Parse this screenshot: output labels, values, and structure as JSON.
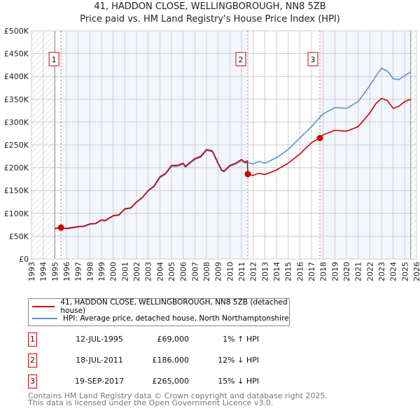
{
  "title": "41, HADDON CLOSE, WELLINGBOROUGH, NN8 5ZB",
  "subtitle": "Price paid vs. HM Land Registry's House Price Index (HPI)",
  "chart_data": {
    "type": "line",
    "xlim": [
      1993,
      2026
    ],
    "ylim": [
      0,
      500000
    ],
    "x_ticks": [
      "1993",
      "1994",
      "1995",
      "1996",
      "1997",
      "1998",
      "1999",
      "2000",
      "2001",
      "2002",
      "2003",
      "2004",
      "2005",
      "2006",
      "2007",
      "2008",
      "2009",
      "2010",
      "2011",
      "2012",
      "2013",
      "2014",
      "2015",
      "2016",
      "2017",
      "2018",
      "2019",
      "2020",
      "2021",
      "2022",
      "2023",
      "2024",
      "2025",
      "2026"
    ],
    "y_ticks": [
      {
        "v": 0,
        "label": "£0"
      },
      {
        "v": 50000,
        "label": "£50K"
      },
      {
        "v": 100000,
        "label": "£100K"
      },
      {
        "v": 150000,
        "label": "£150K"
      },
      {
        "v": 200000,
        "label": "£200K"
      },
      {
        "v": 250000,
        "label": "£250K"
      },
      {
        "v": 300000,
        "label": "£300K"
      },
      {
        "v": 350000,
        "label": "£350K"
      },
      {
        "v": 400000,
        "label": "£400K"
      },
      {
        "v": 450000,
        "label": "£450K"
      },
      {
        "v": 500000,
        "label": "£500K"
      }
    ],
    "grid": true,
    "hatched_before": 1995.0,
    "hatched_after": 2025.5,
    "series": [
      {
        "name": "41, HADDON CLOSE, WELLINGBOROUGH, NN8 5ZB (detached house)",
        "color": "#cc0000",
        "x": [
          1995.0,
          1995.5,
          1996,
          1997,
          1997.5,
          1998,
          1998.5,
          1999,
          1999.3,
          2000,
          2000.5,
          2001,
          2001.5,
          2002,
          2002.5,
          2003,
          2003.5,
          2004,
          2004.5,
          2005,
          2005.5,
          2006,
          2006.2,
          2006.5,
          2007,
          2007.5,
          2008,
          2008.5,
          2009,
          2009.3,
          2009.5,
          2010,
          2010.5,
          2011,
          2011.3,
          2011.5,
          2011.55,
          2012,
          2012.5,
          2013,
          2014,
          2015,
          2016,
          2017,
          2017.7,
          2018,
          2019,
          2020,
          2021,
          2022,
          2022.5,
          2023,
          2023.5,
          2024,
          2024.5,
          2025,
          2025.5
        ],
        "y": [
          67000,
          69000,
          67000,
          71000,
          72000,
          77000,
          78000,
          86000,
          84000,
          95000,
          97000,
          110000,
          112000,
          125000,
          135000,
          150000,
          160000,
          180000,
          188000,
          205000,
          205000,
          210000,
          203000,
          210000,
          220000,
          225000,
          240000,
          237000,
          210000,
          195000,
          193000,
          205000,
          210000,
          218000,
          212000,
          215000,
          186000,
          183000,
          188000,
          185000,
          195000,
          210000,
          230000,
          255000,
          265000,
          272000,
          282000,
          280000,
          290000,
          320000,
          340000,
          352000,
          347000,
          330000,
          335000,
          345000,
          350000
        ]
      },
      {
        "name": "HPI: Average price, detached house, North Northamptonshire",
        "color": "#5b8fd4",
        "x": [
          1995.0,
          1995.5,
          1996,
          1997,
          1997.5,
          1998,
          1998.5,
          1999,
          1999.3,
          2000,
          2000.5,
          2001,
          2001.5,
          2002,
          2002.5,
          2003,
          2003.5,
          2004,
          2004.5,
          2005,
          2005.5,
          2006,
          2006.2,
          2006.5,
          2007,
          2007.5,
          2008,
          2008.5,
          2009,
          2009.3,
          2009.5,
          2010,
          2010.5,
          2011,
          2011.3,
          2011.5,
          2012,
          2012.5,
          2013,
          2014,
          2015,
          2016,
          2017,
          2017.7,
          2018,
          2019,
          2020,
          2021,
          2022,
          2022.5,
          2023,
          2023.5,
          2024,
          2024.5,
          2025,
          2025.5
        ],
        "y": [
          66000,
          68000,
          66000,
          70000,
          71000,
          76000,
          77000,
          85000,
          83000,
          94000,
          96000,
          109000,
          111000,
          124000,
          134000,
          149000,
          158000,
          178000,
          186000,
          203000,
          203000,
          208000,
          201000,
          208000,
          218000,
          223000,
          238000,
          235000,
          208000,
          193000,
          191000,
          203000,
          208000,
          216000,
          210000,
          212000,
          208000,
          214000,
          210000,
          222000,
          240000,
          265000,
          290000,
          310000,
          318000,
          332000,
          330000,
          345000,
          380000,
          400000,
          418000,
          412000,
          395000,
          393000,
          402000,
          410000
        ]
      }
    ],
    "sales": [
      {
        "id": "1",
        "x": 1995.53,
        "y": 69000,
        "date": "12-JUL-1995",
        "price": "£69,000",
        "hpi": "1% ↑ HPI"
      },
      {
        "id": "2",
        "x": 2011.54,
        "y": 186000,
        "date": "18-JUL-2011",
        "price": "£186,000",
        "hpi": "12% ↓ HPI"
      },
      {
        "id": "3",
        "x": 2017.72,
        "y": 265000,
        "date": "19-SEP-2017",
        "price": "£265,000",
        "hpi": "15% ↓ HPI"
      }
    ]
  },
  "footer": [
    "Contains HM Land Registry data © Crown copyright and database right 2025.",
    "This data is licensed under the Open Government Licence v3.0."
  ]
}
